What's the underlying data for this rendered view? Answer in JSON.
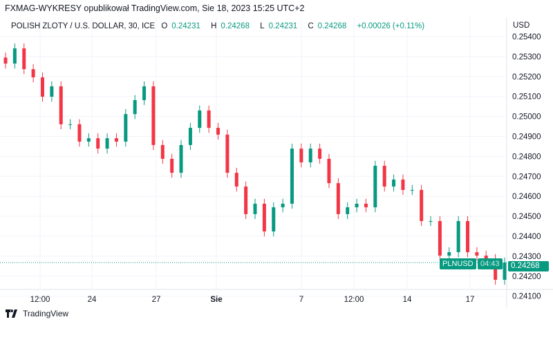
{
  "header": {
    "published": "FXMAG-WYKRESY opublikował TradingView.com, Sie 18, 2023 15:25 UTC+2"
  },
  "legend": {
    "symbol": "POLISH ZLOTY / U.S. DOLLAR, 30, ICE",
    "o_label": "O",
    "o": "0.24231",
    "h_label": "H",
    "h": "0.24268",
    "l_label": "L",
    "l": "0.24231",
    "c_label": "C",
    "c": "0.24268",
    "change": "+0.00026 (+0.11%)"
  },
  "currency": "USD",
  "price_label": {
    "symbol": "PLNUSD",
    "price": "0.24268",
    "countdown": "04:43"
  },
  "footer": {
    "brand": "TradingView"
  },
  "colors": {
    "up": "#089981",
    "down": "#f23645",
    "grid": "#f0f3fa"
  },
  "chart_data": {
    "type": "candlestick",
    "ylim": [
      0.2406,
      0.2545
    ],
    "y_ticks": [
      "0.25400",
      "0.25300",
      "0.25200",
      "0.25100",
      "0.25000",
      "0.24900",
      "0.24800",
      "0.24700",
      "0.24600",
      "0.24500",
      "0.24400",
      "0.24300",
      "0.24200",
      "0.24100"
    ],
    "x_ticks": [
      "12:00",
      "24",
      "27",
      "Sie",
      "7",
      "12:00",
      "14",
      "17"
    ],
    "last_price": 0.24268,
    "closes": [
      0.25265,
      0.25341,
      0.25237,
      0.25196,
      0.25099,
      0.25151,
      0.24961,
      0.24961,
      0.24874,
      0.24891,
      0.24839,
      0.24891,
      0.24874,
      0.25012,
      0.25082,
      0.25151,
      0.24857,
      0.24788,
      0.24718,
      0.24857,
      0.24943,
      0.2503,
      0.24943,
      0.24909,
      0.24718,
      0.24649,
      0.24511,
      0.24563,
      0.24424,
      0.24545,
      0.24563,
      0.24839,
      0.2477,
      0.24839,
      0.24788,
      0.24666,
      0.24511,
      0.24545,
      0.24563,
      0.24545,
      0.24753,
      0.24649,
      0.24684,
      0.24632,
      0.24632,
      0.24476,
      0.24476,
      0.24303,
      0.2432,
      0.24476,
      0.2432,
      0.24303,
      0.24286,
      0.24182,
      0.24268
    ]
  }
}
